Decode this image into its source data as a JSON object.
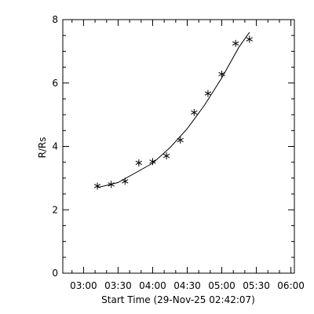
{
  "chart_data": {
    "type": "scatter",
    "title": "",
    "xlabel": "Start Time (29-Nov-25 02:42:07)",
    "ylabel": "R/Rs",
    "x_ticks": [
      "03:00",
      "03:30",
      "04:00",
      "04:30",
      "05:00",
      "05:30",
      "06:00"
    ],
    "y_ticks": [
      "0",
      "2",
      "4",
      "6",
      "8"
    ],
    "xlim": [
      "02:42",
      "06:03"
    ],
    "ylim": [
      0,
      8
    ],
    "grid": false,
    "marker": "asterisk",
    "series": [
      {
        "points": [
          {
            "x": "03:12",
            "y": 2.75
          },
          {
            "x": "03:24",
            "y": 2.8
          },
          {
            "x": "03:36",
            "y": 2.9
          },
          {
            "x": "03:48",
            "y": 3.48
          },
          {
            "x": "04:00",
            "y": 3.52
          },
          {
            "x": "04:12",
            "y": 3.7
          },
          {
            "x": "04:24",
            "y": 4.2
          },
          {
            "x": "04:36",
            "y": 5.07
          },
          {
            "x": "04:48",
            "y": 5.67
          },
          {
            "x": "05:00",
            "y": 6.28
          },
          {
            "x": "05:12",
            "y": 7.25
          },
          {
            "x": "05:24",
            "y": 7.38
          }
        ]
      }
    ],
    "fit_curve": [
      {
        "x": "03:12",
        "y": 2.7
      },
      {
        "x": "03:30",
        "y": 2.86
      },
      {
        "x": "04:00",
        "y": 3.47
      },
      {
        "x": "04:15",
        "y": 3.96
      },
      {
        "x": "04:30",
        "y": 4.56
      },
      {
        "x": "04:45",
        "y": 5.3
      },
      {
        "x": "05:00",
        "y": 6.16
      },
      {
        "x": "05:15",
        "y": 7.14
      },
      {
        "x": "05:24",
        "y": 7.6
      }
    ]
  }
}
